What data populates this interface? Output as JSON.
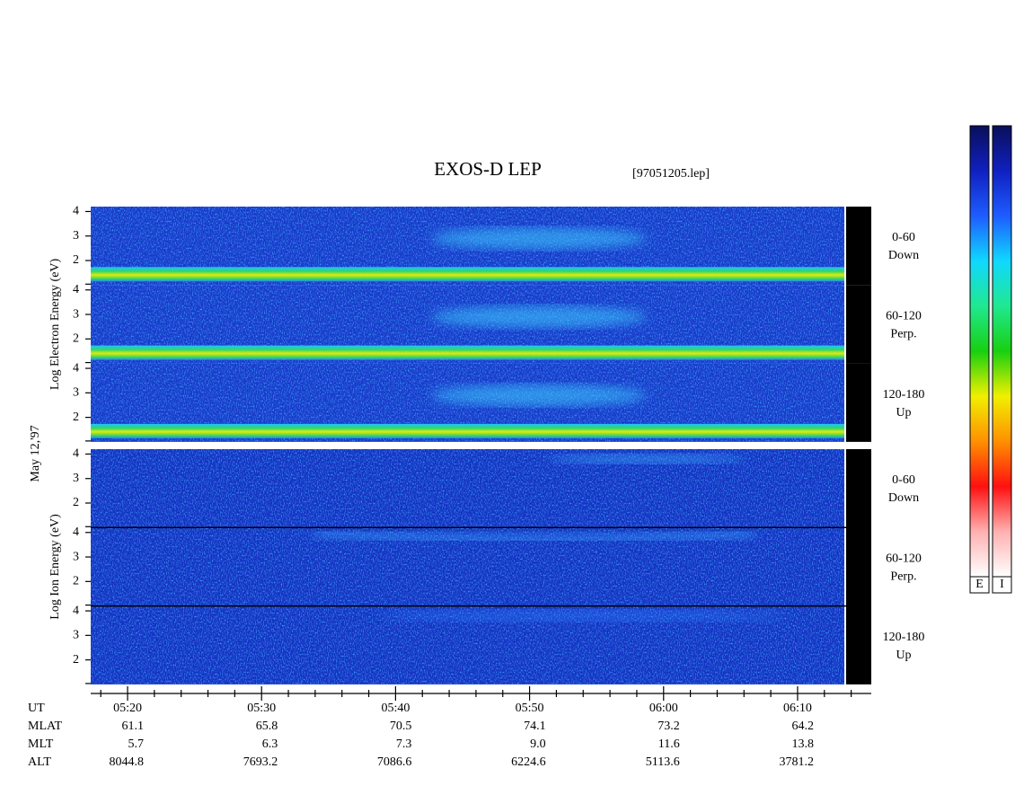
{
  "chart_data": {
    "type": "spectrogram",
    "title": "EXOS-D LEP",
    "file_label": "[97051205.lep]",
    "date_label": "May 12,'97",
    "xlim": [
      317.25,
      375.5
    ],
    "xticks": [
      {
        "value": 320,
        "label": "05:20"
      },
      {
        "value": 330,
        "label": "05:30"
      },
      {
        "value": 340,
        "label": "05:40"
      },
      {
        "value": 350,
        "label": "05:50"
      },
      {
        "value": 360,
        "label": "06:00"
      },
      {
        "value": 370,
        "label": "06:10"
      }
    ],
    "xminorticks": [
      318,
      322,
      324,
      326,
      328,
      332,
      334,
      336,
      338,
      342,
      344,
      346,
      348,
      352,
      354,
      356,
      358,
      362,
      364,
      366,
      368,
      372,
      374
    ],
    "ylim": [
      1,
      4.2
    ],
    "yticks": [
      2,
      3,
      4
    ],
    "groups": [
      {
        "ylabel": "Log Electron Energy (eV)",
        "colorbar_label": "E",
        "panels": [
          {
            "pitch": "0-60",
            "direction": "Down"
          },
          {
            "pitch": "60-120",
            "direction": "Perp."
          },
          {
            "pitch": "120-180",
            "direction": "Up"
          }
        ]
      },
      {
        "ylabel": "Log Ion Energy (eV)",
        "colorbar_label": "I",
        "panels": [
          {
            "pitch": "0-60",
            "direction": "Down"
          },
          {
            "pitch": "60-120",
            "direction": "Perp."
          },
          {
            "pitch": "120-180",
            "direction": "Up"
          }
        ]
      }
    ],
    "ephemeris": [
      {
        "name": "UT",
        "values": []
      },
      {
        "name": "MLAT",
        "values": [
          "61.1",
          "65.8",
          "70.5",
          "74.1",
          "73.2",
          "64.2"
        ]
      },
      {
        "name": "MLT",
        "values": [
          "5.7",
          "6.3",
          "7.3",
          "9.0",
          "11.6",
          "13.8"
        ]
      },
      {
        "name": "ALT",
        "values": [
          "8044.8",
          "7693.2",
          "7086.6",
          "6224.6",
          "5113.6",
          "3781.2"
        ]
      }
    ],
    "colorscale": [
      "#0a0f5a",
      "#1020c0",
      "#1e5cff",
      "#10d8ff",
      "#20e890",
      "#18d010",
      "#f0f000",
      "#ff9000",
      "#ff1010",
      "#ffb0b0",
      "#ffffff"
    ]
  }
}
